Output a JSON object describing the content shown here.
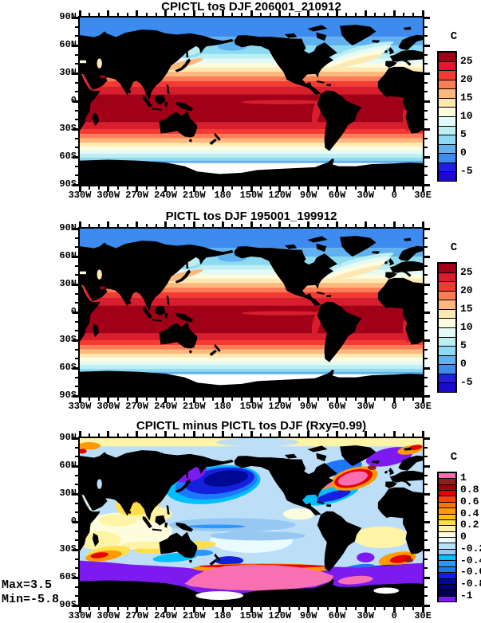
{
  "panels": [
    {
      "id": "cpictl",
      "title": "CPICTL tos DJF 206001_210912",
      "colorbar": {
        "units": "C",
        "tick_labels": [
          "25",
          "20",
          "15",
          "10",
          "5",
          "0",
          "-5"
        ]
      }
    },
    {
      "id": "pictl",
      "title": "PICTL tos DJF 195001_199912",
      "colorbar": {
        "units": "C",
        "tick_labels": [
          "25",
          "20",
          "15",
          "10",
          "5",
          "0",
          "-5"
        ]
      }
    },
    {
      "id": "diff",
      "title": "CPICTL minus PICTL tos DJF (Rxy=0.99)",
      "colorbar": {
        "units": "C",
        "tick_labels": [
          "1",
          "0.8",
          "0.6",
          "0.4",
          "0.2",
          "0",
          "-0.2",
          "-0.4",
          "-0.6",
          "-0.8",
          "-1"
        ]
      },
      "stats": {
        "max": "Max=3.5",
        "min": "Min=-5.8"
      }
    }
  ],
  "axes": {
    "x_tick_labels": [
      "330W",
      "300W",
      "270W",
      "240W",
      "210W",
      "180",
      "150W",
      "120W",
      "90W",
      "60W",
      "30W",
      "0",
      "30E"
    ],
    "y_tick_labels": [
      "90N",
      "60N",
      "30N",
      "0",
      "30S",
      "60S",
      "90S"
    ]
  },
  "palettes": {
    "sst": [
      "#A00018",
      "#D81E2C",
      "#F53B31",
      "#FB7C55",
      "#FDB87D",
      "#FCE8B0",
      "#FEFCDE",
      "#E3FAF6",
      "#BDEFF2",
      "#8EDAF2",
      "#5FB1EF",
      "#3D8BEE",
      "#1F1FDD",
      "#1C0ACB"
    ],
    "diff": [
      "#F870B2",
      "#8F2121",
      "#A80000",
      "#E60000",
      "#FF4400",
      "#FF7300",
      "#FF9A00",
      "#FFBC1E",
      "#FFE04A",
      "#FFF3A6",
      "#FDFDDE",
      "#E9FBFF",
      "#BCDFF7",
      "#96C8F2",
      "#00BFFF",
      "#2E96FF",
      "#1E78FF",
      "#1420DC",
      "#000896",
      "#000070",
      "#000050",
      "#7C1AF0"
    ],
    "land": "#000000",
    "ice": "#FFFFFF",
    "frame": "#000000",
    "background": "#FFFFFF"
  },
  "chart_data": [
    {
      "type": "heatmap",
      "title": "CPICTL tos DJF 206001_210912",
      "variable": "tos (sea surface temperature)",
      "season": "DJF",
      "period": "206001_210912",
      "units": "C",
      "projection": "global cylindrical equidistant, longitudes 330W to 30E, latitudes 90S to 90N",
      "x_ticks": [
        "330W",
        "300W",
        "270W",
        "240W",
        "210W",
        "180",
        "150W",
        "120W",
        "90W",
        "60W",
        "30W",
        "0",
        "30E"
      ],
      "y_ticks": [
        "90N",
        "60N",
        "30N",
        "0",
        "30S",
        "60S",
        "90S"
      ],
      "colorbar_labeled_levels": [
        -5,
        0,
        5,
        10,
        15,
        20,
        25
      ],
      "contour_interval": 2.5,
      "zonal_mean_sst_C": [
        {
          "lat": "90N-70N",
          "value": -2
        },
        {
          "lat": "70N-60N",
          "value": 0
        },
        {
          "lat": "60N-50N",
          "value": 3
        },
        {
          "lat": "50N-45N",
          "value": 7
        },
        {
          "lat": "45N-40N",
          "value": 10
        },
        {
          "lat": "40N-35N",
          "value": 13
        },
        {
          "lat": "35N-30N",
          "value": 16
        },
        {
          "lat": "30N-25N",
          "value": 19
        },
        {
          "lat": "25N-20N",
          "value": 22
        },
        {
          "lat": "20N-10N",
          "value": 25
        },
        {
          "lat": "10N-20S",
          "value": 28
        },
        {
          "lat": "20S-30S",
          "value": 23
        },
        {
          "lat": "30S-40S",
          "value": 17
        },
        {
          "lat": "40S-50S",
          "value": 11
        },
        {
          "lat": "50S-60S",
          "value": 4
        },
        {
          "lat": "60S-70S",
          "value": -1
        }
      ]
    },
    {
      "type": "heatmap",
      "title": "PICTL tos DJF 195001_199912",
      "variable": "tos (sea surface temperature)",
      "season": "DJF",
      "period": "195001_199912",
      "units": "C",
      "projection": "global cylindrical equidistant, longitudes 330W to 30E, latitudes 90S to 90N",
      "x_ticks": [
        "330W",
        "300W",
        "270W",
        "240W",
        "210W",
        "180",
        "150W",
        "120W",
        "90W",
        "60W",
        "30W",
        "0",
        "30E"
      ],
      "y_ticks": [
        "90N",
        "60N",
        "30N",
        "0",
        "30S",
        "60S",
        "90S"
      ],
      "colorbar_labeled_levels": [
        -5,
        0,
        5,
        10,
        15,
        20,
        25
      ],
      "contour_interval": 2.5,
      "zonal_mean_sst_C": [
        {
          "lat": "90N-70N",
          "value": -2
        },
        {
          "lat": "70N-60N",
          "value": 0
        },
        {
          "lat": "60N-50N",
          "value": 3
        },
        {
          "lat": "50N-45N",
          "value": 7
        },
        {
          "lat": "45N-40N",
          "value": 10
        },
        {
          "lat": "40N-35N",
          "value": 13
        },
        {
          "lat": "35N-30N",
          "value": 16
        },
        {
          "lat": "30N-25N",
          "value": 19
        },
        {
          "lat": "25N-20N",
          "value": 22
        },
        {
          "lat": "20N-10N",
          "value": 25
        },
        {
          "lat": "10N-20S",
          "value": 28
        },
        {
          "lat": "20S-30S",
          "value": 23
        },
        {
          "lat": "30S-40S",
          "value": 17
        },
        {
          "lat": "40S-50S",
          "value": 11
        },
        {
          "lat": "50S-60S",
          "value": 4
        },
        {
          "lat": "60S-70S",
          "value": -1
        }
      ]
    },
    {
      "type": "heatmap",
      "title": "CPICTL minus PICTL tos DJF (Rxy=0.99)",
      "variable": "tos difference (CPICTL - PICTL)",
      "season": "DJF",
      "units": "C",
      "pattern_correlation_Rxy": 0.99,
      "max": 3.5,
      "min": -5.8,
      "colorbar_labeled_levels": [
        -1,
        -0.8,
        -0.6,
        -0.4,
        -0.2,
        0,
        0.2,
        0.4,
        0.6,
        0.8,
        1
      ],
      "contour_interval": 0.1,
      "notable_features": [
        {
          "region": "North Pacific 40-60N",
          "value": "-0.6 to below -1 (strong cooling, navy core with purple patch)"
        },
        {
          "region": "Kuroshio / West Pacific 30-40N",
          "value": "+0.2 to +0.6 (yellow-orange)"
        },
        {
          "region": "Northwest Atlantic 45-60N",
          "value": "above +1 (pink) ringed by +0.4 to +0.8 (red/orange)"
        },
        {
          "region": "Nordic Seas 65-75N",
          "value": "below -1 (purple)"
        },
        {
          "region": "Southern Ocean 50-70S",
          "value": "below -1 (circumpolar purple band)"
        },
        {
          "region": "Antarctic coastal 60-75S, 180-60W",
          "value": "above +1 (pink) with +0.4 to +0.8 fringe"
        },
        {
          "region": "South Indian 30-60E near 55S",
          "value": "+0.4 to +0.8 (orange/red)"
        },
        {
          "region": "South Atlantic 0-30E 40-55S",
          "value": "+0.4 to +0.8 patches with navy streaks"
        },
        {
          "region": "Tropics",
          "value": "-0.2 to +0.2 (mottled pale blue / pale yellow)"
        }
      ]
    }
  ]
}
